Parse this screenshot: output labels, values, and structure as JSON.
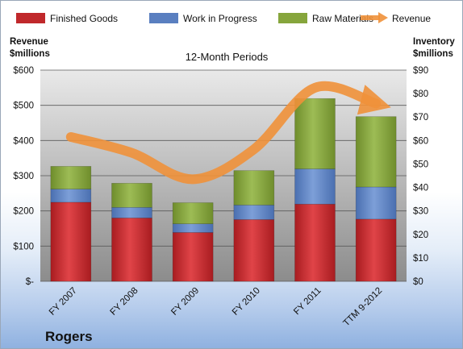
{
  "chart_data": {
    "type": "bar",
    "stacked": true,
    "subtitle": "12-Month Periods",
    "company": "Rogers",
    "left_axis": {
      "title_line1": "Revenue",
      "title_line2": "$millions",
      "ylim": [
        0,
        600
      ],
      "ticks": [
        "$-",
        "$100",
        "$200",
        "$300",
        "$400",
        "$500",
        "$600"
      ]
    },
    "right_axis": {
      "title_line1": "Inventory",
      "title_line2": "$millions",
      "ylim": [
        0,
        90
      ],
      "ticks": [
        "$0",
        "$10",
        "$20",
        "$30",
        "$40",
        "$50",
        "$60",
        "$70",
        "$80",
        "$90"
      ]
    },
    "categories": [
      "FY 2007",
      "FY 2008",
      "FY 2009",
      "FY 2010",
      "FY 2011",
      "TTM 9-2012"
    ],
    "series": [
      {
        "name": "Finished Goods",
        "axis": "right",
        "color": "#c0282b",
        "values": [
          33.7,
          27.0,
          20.8,
          26.3,
          32.9,
          26.5
        ]
      },
      {
        "name": "Work in Progress",
        "axis": "right",
        "color": "#5a7fc0",
        "values": [
          5.6,
          4.5,
          3.7,
          6.2,
          15.0,
          13.7
        ]
      },
      {
        "name": "Raw Materials",
        "axis": "right",
        "color": "#86a53c",
        "values": [
          9.7,
          10.3,
          9.0,
          14.7,
          30.0,
          30.0
        ]
      }
    ],
    "line": {
      "name": "Revenue",
      "axis": "left",
      "color": "#f0913a",
      "values": [
        410,
        365,
        290,
        375,
        550,
        505
      ]
    },
    "legend_position": "top",
    "grid": true
  }
}
